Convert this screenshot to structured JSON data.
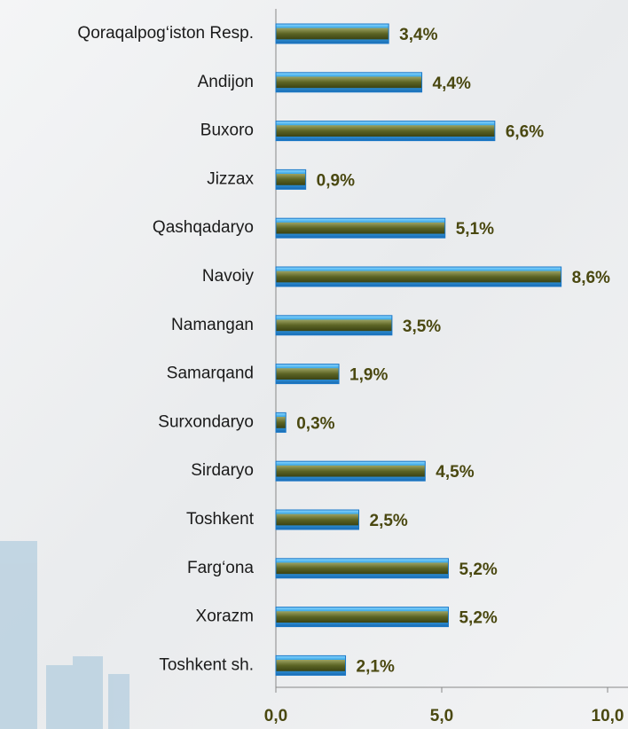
{
  "chart_data": {
    "type": "bar",
    "orientation": "horizontal",
    "categories": [
      "Qoraqalpog‘iston Resp.",
      "Andijon",
      "Buxoro",
      "Jizzax",
      "Qashqadaryo",
      "Navoiy",
      "Namangan",
      "Samarqand",
      "Surxondaryo",
      "Sirdaryo",
      "Toshkent",
      "Farg‘ona",
      "Xorazm",
      "Toshkent sh."
    ],
    "values": [
      3.4,
      4.4,
      6.6,
      0.9,
      5.1,
      8.6,
      3.5,
      1.9,
      0.3,
      4.5,
      2.5,
      5.2,
      5.2,
      2.1
    ],
    "value_labels": [
      "3,4%",
      "4,4%",
      "6,6%",
      "0,9%",
      "5,1%",
      "8,6%",
      "3,5%",
      "1,9%",
      "0,3%",
      "4,5%",
      "2,5%",
      "5,2%",
      "5,2%",
      "2,1%"
    ],
    "color": "#3aa8e8",
    "xlim": [
      0,
      10
    ],
    "xticks": [
      {
        "value": 0,
        "label": "0,0"
      },
      {
        "value": 5,
        "label": "5,0"
      },
      {
        "value": 10,
        "label": "10,0"
      }
    ]
  }
}
